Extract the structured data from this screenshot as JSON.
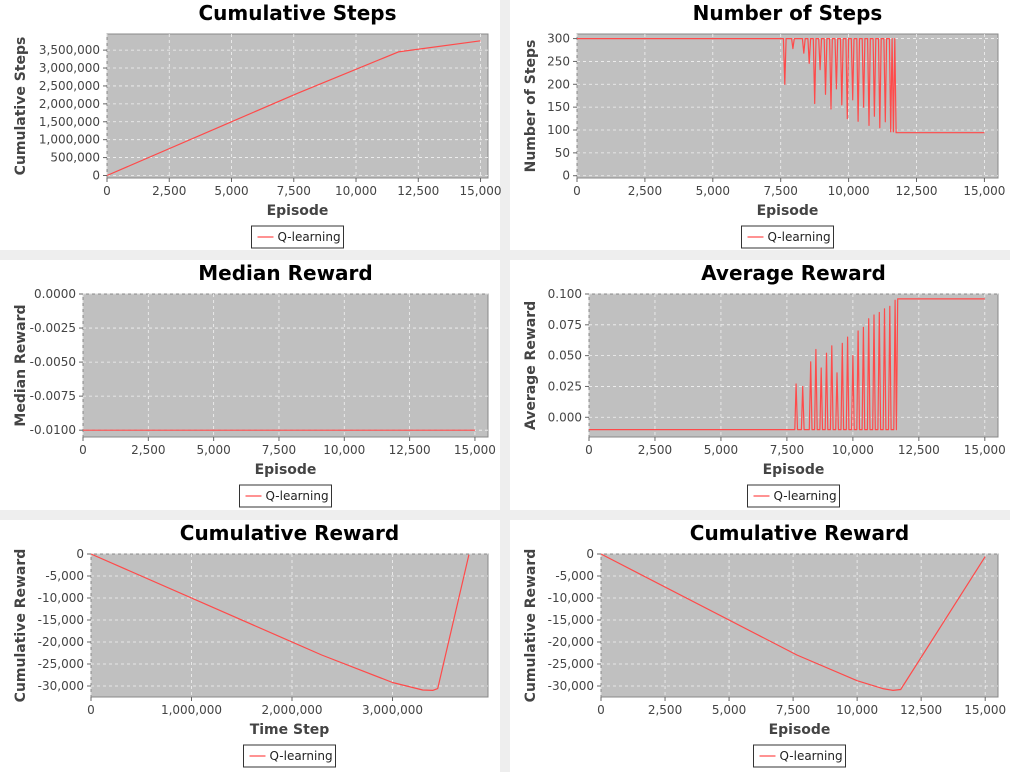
{
  "colors": {
    "series": "#ff4a4a",
    "plot_bg": "#c0c0c0",
    "grid": "#f2f2f2",
    "panel_bg": "#ffffff",
    "page_bg": "#eeeeee"
  },
  "chart_data": [
    {
      "type": "line",
      "title": "Cumulative Steps",
      "xlabel": "Episode",
      "ylabel": "Cumulative Steps",
      "xlim": [
        0,
        15300
      ],
      "ylim": [
        -70000,
        3950000
      ],
      "xticks": [
        0,
        2500,
        5000,
        7500,
        10000,
        12500,
        15000
      ],
      "xtick_labels": [
        "0",
        "2,500",
        "5,000",
        "7,500",
        "10,000",
        "12,500",
        "15,000"
      ],
      "yticks": [
        0,
        500000,
        1000000,
        1500000,
        2000000,
        2500000,
        3000000,
        3500000
      ],
      "ytick_labels": [
        "0",
        "500,000",
        "1,000,000",
        "1,500,000",
        "2,000,000",
        "2,500,000",
        "3,000,000",
        "3,500,000"
      ],
      "grid": true,
      "legend": "bottom",
      "series": [
        {
          "name": "Q-learning",
          "x": [
            0,
            7650,
            11700,
            15000
          ],
          "y": [
            0,
            2295000,
            3450000,
            3760000
          ]
        }
      ]
    },
    {
      "type": "line",
      "title": "Number of Steps",
      "xlabel": "Episode",
      "ylabel": "Number of Steps",
      "xlim": [
        0,
        15500
      ],
      "ylim": [
        -5,
        310
      ],
      "xticks": [
        0,
        2500,
        5000,
        7500,
        10000,
        12500,
        15000
      ],
      "xtick_labels": [
        "0",
        "2,500",
        "5,000",
        "7,500",
        "10,000",
        "12,500",
        "15,000"
      ],
      "yticks": [
        0,
        50,
        100,
        150,
        200,
        250,
        300
      ],
      "ytick_labels": [
        "0",
        "50",
        "100",
        "150",
        "200",
        "250",
        "300"
      ],
      "grid": true,
      "legend": "bottom",
      "series": [
        {
          "name": "Q-learning",
          "x": [
            0,
            7600,
            7650,
            7700,
            7900,
            7950,
            8000,
            8300,
            8350,
            8400,
            8500,
            8550,
            8600,
            8700,
            8750,
            8800,
            8900,
            8950,
            9000,
            9100,
            9150,
            9200,
            9300,
            9350,
            9400,
            9500,
            9550,
            9600,
            9700,
            9750,
            9800,
            9900,
            9950,
            10000,
            10100,
            10150,
            10200,
            10300,
            10350,
            10400,
            10500,
            10550,
            10600,
            10700,
            10750,
            10800,
            10900,
            10950,
            11000,
            11100,
            11150,
            11200,
            11300,
            11350,
            11400,
            11500,
            11550,
            11600,
            11650,
            11700,
            11750,
            15000
          ],
          "y": [
            300,
            300,
            200,
            300,
            300,
            278,
            300,
            300,
            268,
            300,
            300,
            246,
            300,
            300,
            158,
            300,
            300,
            232,
            300,
            300,
            178,
            300,
            300,
            146,
            300,
            300,
            190,
            300,
            300,
            155,
            300,
            300,
            125,
            300,
            300,
            166,
            300,
            300,
            119,
            300,
            300,
            150,
            300,
            300,
            110,
            300,
            300,
            130,
            300,
            300,
            105,
            300,
            300,
            118,
            300,
            300,
            96,
            300,
            96,
            300,
            94,
            94
          ]
        }
      ]
    },
    {
      "type": "line",
      "title": "Median Reward",
      "xlabel": "Episode",
      "ylabel": "Median Reward",
      "xlim": [
        0,
        15500
      ],
      "ylim": [
        -0.0105,
        0.0
      ],
      "xticks": [
        0,
        2500,
        5000,
        7500,
        10000,
        12500,
        15000
      ],
      "xtick_labels": [
        "0",
        "2,500",
        "5,000",
        "7,500",
        "10,000",
        "12,500",
        "15,000"
      ],
      "yticks": [
        0.0,
        -0.0025,
        -0.005,
        -0.0075,
        -0.01
      ],
      "ytick_labels": [
        "0.0000",
        "-0.0025",
        "-0.0050",
        "-0.0075",
        "-0.0100"
      ],
      "grid": true,
      "legend": "bottom",
      "series": [
        {
          "name": "Q-learning",
          "x": [
            0,
            15000
          ],
          "y": [
            -0.01,
            -0.01
          ]
        }
      ]
    },
    {
      "type": "line",
      "title": "Average Reward",
      "xlabel": "Episode",
      "ylabel": "Average Reward",
      "xlim": [
        0,
        15500
      ],
      "ylim": [
        -0.016,
        0.1
      ],
      "xticks": [
        0,
        2500,
        5000,
        7500,
        10000,
        12500,
        15000
      ],
      "xtick_labels": [
        "0",
        "2,500",
        "5,000",
        "7,500",
        "10,000",
        "12,500",
        "15,000"
      ],
      "yticks": [
        0.0,
        0.025,
        0.05,
        0.075,
        0.1
      ],
      "ytick_labels": [
        "0.000",
        "0.025",
        "0.050",
        "0.075",
        "0.100"
      ],
      "grid": true,
      "legend": "bottom",
      "series": [
        {
          "name": "Q-learning",
          "x": [
            0,
            7800,
            7850,
            7900,
            8050,
            8100,
            8150,
            8350,
            8400,
            8450,
            8550,
            8600,
            8650,
            8750,
            8800,
            8850,
            8950,
            9000,
            9050,
            9150,
            9200,
            9250,
            9350,
            9400,
            9450,
            9550,
            9600,
            9650,
            9750,
            9800,
            9850,
            9950,
            10000,
            10050,
            10150,
            10200,
            10250,
            10350,
            10400,
            10450,
            10550,
            10600,
            10650,
            10750,
            10800,
            10850,
            10950,
            11000,
            11050,
            11150,
            11200,
            11250,
            11350,
            11400,
            11450,
            11550,
            11600,
            11650,
            11700,
            11750,
            15000
          ],
          "y": [
            -0.01,
            -0.01,
            0.027,
            -0.01,
            -0.01,
            0.025,
            -0.01,
            -0.01,
            0.045,
            -0.01,
            -0.01,
            0.055,
            -0.01,
            -0.01,
            0.04,
            -0.01,
            -0.01,
            0.052,
            -0.01,
            -0.01,
            0.058,
            -0.01,
            -0.01,
            0.036,
            -0.01,
            -0.01,
            0.06,
            -0.01,
            -0.01,
            0.065,
            -0.01,
            -0.01,
            0.05,
            -0.01,
            -0.01,
            0.07,
            -0.01,
            -0.01,
            0.073,
            -0.01,
            -0.01,
            0.08,
            -0.01,
            -0.01,
            0.083,
            -0.01,
            -0.01,
            0.085,
            -0.01,
            -0.01,
            0.088,
            -0.01,
            -0.01,
            0.09,
            -0.01,
            -0.01,
            0.095,
            -0.01,
            0.096,
            0.096,
            0.096
          ]
        }
      ]
    },
    {
      "type": "line",
      "title": "Cumulative Reward",
      "xlabel": "Time Step",
      "ylabel": "Cumulative Reward",
      "xlim": [
        0,
        3950000
      ],
      "ylim": [
        -32500,
        0
      ],
      "xticks": [
        0,
        1000000,
        2000000,
        3000000
      ],
      "xtick_labels": [
        "0",
        "1,000,000",
        "2,000,000",
        "3,000,000"
      ],
      "yticks": [
        0,
        -5000,
        -10000,
        -15000,
        -20000,
        -25000,
        -30000
      ],
      "ytick_labels": [
        "0",
        "-5,000",
        "-10,000",
        "-15,000",
        "-20,000",
        "-25,000",
        "-30,000"
      ],
      "grid": true,
      "legend": "bottom",
      "series": [
        {
          "name": "Q-learning",
          "x": [
            0,
            2295000,
            3000000,
            3300000,
            3400000,
            3450000,
            3760000
          ],
          "y": [
            0,
            -22950,
            -29200,
            -30900,
            -31000,
            -30600,
            -150
          ]
        }
      ]
    },
    {
      "type": "line",
      "title": "Cumulative Reward",
      "xlabel": "Episode",
      "ylabel": "Cumulative Reward",
      "xlim": [
        0,
        15500
      ],
      "ylim": [
        -32500,
        0
      ],
      "xticks": [
        0,
        2500,
        5000,
        7500,
        10000,
        12500,
        15000
      ],
      "xtick_labels": [
        "0",
        "2,500",
        "5,000",
        "7,500",
        "10,000",
        "12,500",
        "15,000"
      ],
      "yticks": [
        0,
        -5000,
        -10000,
        -15000,
        -20000,
        -25000,
        -30000
      ],
      "ytick_labels": [
        "0",
        "-5,000",
        "-10,000",
        "-15,000",
        "-20,000",
        "-25,000",
        "-30,000"
      ],
      "grid": true,
      "legend": "bottom",
      "series": [
        {
          "name": "Q-learning",
          "x": [
            0,
            7650,
            10000,
            11000,
            11400,
            11700,
            15000
          ],
          "y": [
            0,
            -22950,
            -28800,
            -30600,
            -31000,
            -30800,
            -600
          ]
        }
      ]
    }
  ]
}
